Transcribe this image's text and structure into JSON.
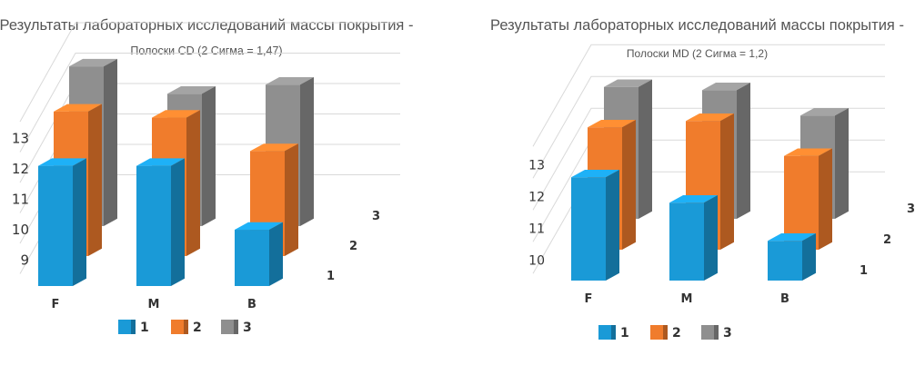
{
  "chart_data": [
    {
      "type": "bar",
      "title": "Результаты лабораторных исследований массы покрытия -",
      "subtitle": "Полоски CD (2 Сигма = 1,47)",
      "categories": [
        "F",
        "M",
        "B"
      ],
      "yticks": [
        "9",
        "10",
        "11",
        "12",
        "13"
      ],
      "depth_labels": [
        "1",
        "2",
        "3"
      ],
      "series": [
        {
          "name": "1",
          "color": "#1a9ad7",
          "values": [
            12.1,
            12.1,
            10.0
          ]
        },
        {
          "name": "2",
          "color": "#f07c2c",
          "values": [
            12.9,
            12.7,
            11.6
          ]
        },
        {
          "name": "3",
          "color": "#8f8f8f",
          "values": [
            13.4,
            12.5,
            12.8
          ]
        }
      ],
      "ylim": [
        9,
        13
      ],
      "legend": "bottom",
      "grid": true
    },
    {
      "type": "bar",
      "title": "Результаты лабораторных исследований массы покрытия -",
      "subtitle": "Полоски MD (2 Сигма = 1,2)",
      "categories": [
        "F",
        "M",
        "B"
      ],
      "yticks": [
        "10",
        "11",
        "12",
        "13"
      ],
      "depth_labels": [
        "1",
        "2",
        "3"
      ],
      "series": [
        {
          "name": "1",
          "color": "#1a9ad7",
          "values": [
            12.6,
            11.8,
            10.6
          ]
        },
        {
          "name": "2",
          "color": "#f07c2c",
          "values": [
            13.2,
            13.4,
            12.3
          ]
        },
        {
          "name": "3",
          "color": "#8f8f8f",
          "values": [
            13.5,
            13.4,
            12.6
          ]
        }
      ],
      "ylim": [
        10,
        13
      ],
      "legend": "bottom",
      "grid": true
    }
  ]
}
